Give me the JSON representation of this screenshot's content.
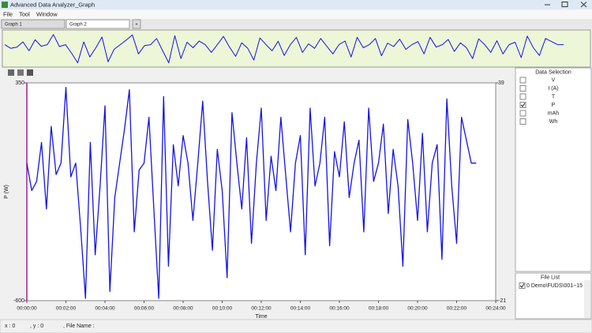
{
  "window": {
    "title": "Advanced Data Analyzer_Graph",
    "menu": [
      "File",
      "Tool",
      "Window"
    ],
    "tabs": [
      "Graph 1",
      "Graph 2",
      "+"
    ]
  },
  "chart_data": {
    "type": "line",
    "y_label": "P (W)",
    "x_label": "Time",
    "x": [
      0,
      15,
      30,
      45,
      60,
      75,
      90,
      105,
      120,
      135,
      150,
      165,
      180,
      195,
      210,
      225,
      240,
      255,
      270,
      285,
      300,
      315,
      330,
      345,
      360,
      375,
      390,
      405,
      420,
      435,
      450,
      465,
      480,
      495,
      510,
      525,
      540,
      555,
      570,
      585,
      600,
      615,
      630,
      645,
      660,
      675,
      690,
      705,
      720,
      735,
      750,
      765,
      780,
      795,
      810,
      825,
      840,
      855,
      870,
      885,
      900,
      915,
      930,
      945,
      960,
      975,
      990,
      1005,
      1020,
      1035,
      1050,
      1065,
      1080,
      1095,
      1110,
      1125,
      1140,
      1155,
      1170,
      1185,
      1200,
      1215,
      1230,
      1245,
      1260,
      1275,
      1290,
      1305,
      1320,
      1335,
      1350,
      1365,
      1380
    ],
    "series": [
      {
        "color": "#1414e6",
        "values": [
          0,
          -120,
          -80,
          90,
          -200,
          160,
          -50,
          0,
          330,
          -60,
          0,
          -280,
          -590,
          90,
          -400,
          -100,
          250,
          -560,
          -150,
          0,
          150,
          320,
          -300,
          -30,
          0,
          200,
          -200,
          -590,
          290,
          -450,
          80,
          -100,
          120,
          0,
          -250,
          0,
          270,
          -80,
          -380,
          60,
          -120,
          -500,
          220,
          0,
          -200,
          110,
          -350,
          0,
          240,
          -250,
          30,
          -120,
          200,
          -50,
          -300,
          0,
          120,
          -400,
          240,
          -100,
          0,
          200,
          -360,
          50,
          -60,
          180,
          -150,
          0,
          100,
          -300,
          240,
          -80,
          0,
          170,
          -220,
          60,
          -100,
          -450,
          190,
          0,
          -250,
          130,
          -300,
          0,
          80,
          -420,
          280,
          -100,
          -350,
          200,
          100,
          0,
          0
        ]
      }
    ],
    "xlim": [
      0,
      1440
    ],
    "xticks": [
      {
        "value": 0,
        "label": "00:00:00"
      },
      {
        "value": 120,
        "label": "00:02:00"
      },
      {
        "value": 240,
        "label": "00:04:00"
      },
      {
        "value": 360,
        "label": "00:06:00"
      },
      {
        "value": 480,
        "label": "00:08:00"
      },
      {
        "value": 600,
        "label": "00:10:00"
      },
      {
        "value": 720,
        "label": "00:12:00"
      },
      {
        "value": 840,
        "label": "00:14:00"
      },
      {
        "value": 960,
        "label": "00:16:00"
      },
      {
        "value": 1080,
        "label": "00:18:00"
      },
      {
        "value": 1200,
        "label": "00:20:00"
      },
      {
        "value": 1320,
        "label": "00:22:00"
      },
      {
        "value": 1440,
        "label": "00:24:00"
      }
    ],
    "ylim": [
      -600,
      350
    ],
    "yticks": [
      -600,
      350
    ],
    "y2lim": [
      -21,
      39
    ],
    "y2ticks": [
      -21,
      39
    ],
    "grid": false,
    "axis_color": "#a020a0"
  },
  "data_selection": {
    "title": "Data Selection",
    "items": [
      {
        "label": "V",
        "checked": false
      },
      {
        "label": "I (A)",
        "checked": false
      },
      {
        "label": "T",
        "checked": false
      },
      {
        "label": "P",
        "checked": true
      },
      {
        "label": "mAh",
        "checked": false
      },
      {
        "label": "Wh",
        "checked": false
      }
    ]
  },
  "file_list": {
    "title": "File List",
    "items": [
      {
        "label": "0 Demo\\FUDS\\001~15",
        "checked": true
      }
    ]
  },
  "status": [
    "x : 0",
    ", y : 0",
    ", File Name :"
  ]
}
